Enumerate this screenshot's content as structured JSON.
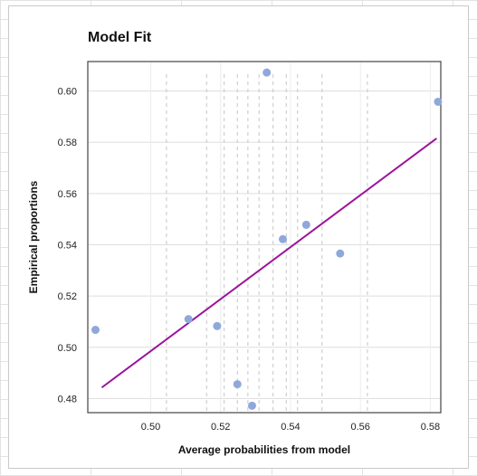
{
  "chart_data": {
    "type": "scatter",
    "title": "Model Fit",
    "xlabel": "Average probabilities from model",
    "ylabel": "Empirical proportions",
    "xlim": [
      0.482,
      0.583
    ],
    "ylim": [
      0.4745,
      0.6115
    ],
    "xticks": [
      0.5,
      0.52,
      0.54,
      0.56,
      0.58
    ],
    "yticks": [
      0.48,
      0.5,
      0.52,
      0.54,
      0.56,
      0.58,
      0.6
    ],
    "xtick_labels": [
      "0.50",
      "0.52",
      "0.54",
      "0.56",
      "0.58"
    ],
    "ytick_labels": [
      "0.48",
      "0.50",
      "0.52",
      "0.54",
      "0.56",
      "0.58",
      "0.60"
    ],
    "grid": true,
    "points": [
      {
        "x": 0.4842,
        "y": 0.5068
      },
      {
        "x": 0.5108,
        "y": 0.511
      },
      {
        "x": 0.519,
        "y": 0.5083
      },
      {
        "x": 0.5248,
        "y": 0.4856
      },
      {
        "x": 0.529,
        "y": 0.4772
      },
      {
        "x": 0.5332,
        "y": 0.6072
      },
      {
        "x": 0.5378,
        "y": 0.5422
      },
      {
        "x": 0.5445,
        "y": 0.5478
      },
      {
        "x": 0.5542,
        "y": 0.5366
      },
      {
        "x": 0.5822,
        "y": 0.5958
      }
    ],
    "fit_line": {
      "x": [
        0.486,
        0.5818
      ],
      "y": [
        0.4843,
        0.5815
      ]
    },
    "vertical_markers_x": [
      0.5045,
      0.516,
      0.521,
      0.5248,
      0.5278,
      0.531,
      0.535,
      0.5388,
      0.542,
      0.549,
      0.562
    ],
    "colors": {
      "points": "#8fa8dc",
      "fit_line": "#9b159b",
      "grid": "#dddddd",
      "markers": "#cfcfcf",
      "frame": "#444444"
    }
  }
}
